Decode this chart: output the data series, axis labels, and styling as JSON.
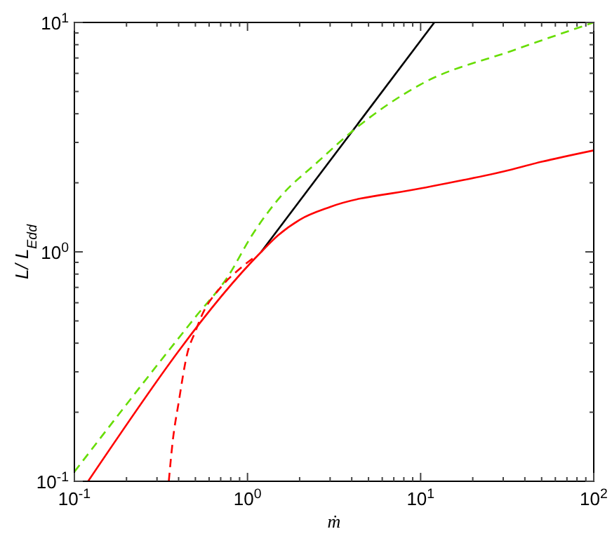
{
  "chart_data": {
    "type": "line",
    "xlabel": "ṁ",
    "ylabel": "L/ L$_{Edd}$",
    "log": "xy",
    "grid": false,
    "xlim": [
      0.1,
      100
    ],
    "ylim": [
      0.1,
      10
    ],
    "xticks": [
      {
        "value": 0.1,
        "label": "10$^{-1}$"
      },
      {
        "value": 0.2,
        "label": null
      },
      {
        "value": 0.3,
        "label": null
      },
      {
        "value": 0.4,
        "label": null
      },
      {
        "value": 0.5,
        "label": null
      },
      {
        "value": 0.6,
        "label": null
      },
      {
        "value": 0.7,
        "label": null
      },
      {
        "value": 0.8,
        "label": null
      },
      {
        "value": 0.9,
        "label": null
      },
      {
        "value": 1,
        "label": "10$^{0}$"
      },
      {
        "value": 2,
        "label": null
      },
      {
        "value": 3,
        "label": null
      },
      {
        "value": 4,
        "label": null
      },
      {
        "value": 5,
        "label": null
      },
      {
        "value": 6,
        "label": null
      },
      {
        "value": 7,
        "label": null
      },
      {
        "value": 8,
        "label": null
      },
      {
        "value": 9,
        "label": null
      },
      {
        "value": 10,
        "label": "10$^{1}$"
      },
      {
        "value": 20,
        "label": null
      },
      {
        "value": 30,
        "label": null
      },
      {
        "value": 40,
        "label": null
      },
      {
        "value": 50,
        "label": null
      },
      {
        "value": 60,
        "label": null
      },
      {
        "value": 70,
        "label": null
      },
      {
        "value": 80,
        "label": null
      },
      {
        "value": 90,
        "label": null
      },
      {
        "value": 100,
        "label": "10$^{2}$"
      }
    ],
    "yticks": [
      {
        "value": 0.1,
        "label": "10$^{-1}$"
      },
      {
        "value": 0.2,
        "label": null
      },
      {
        "value": 0.3,
        "label": null
      },
      {
        "value": 0.4,
        "label": null
      },
      {
        "value": 0.5,
        "label": null
      },
      {
        "value": 0.6,
        "label": null
      },
      {
        "value": 0.7,
        "label": null
      },
      {
        "value": 0.8,
        "label": null
      },
      {
        "value": 0.9,
        "label": null
      },
      {
        "value": 1,
        "label": "10$^{0}$"
      },
      {
        "value": 2,
        "label": null
      },
      {
        "value": 3,
        "label": null
      },
      {
        "value": 4,
        "label": null
      },
      {
        "value": 5,
        "label": null
      },
      {
        "value": 6,
        "label": null
      },
      {
        "value": 7,
        "label": null
      },
      {
        "value": 8,
        "label": null
      },
      {
        "value": 9,
        "label": null
      },
      {
        "value": 10,
        "label": "10$^{1}$"
      }
    ],
    "series": [
      {
        "color": "#000000",
        "line_style": "solid",
        "x": [
          1.2,
          12
        ],
        "values": [
          1.0,
          10
        ]
      },
      {
        "color": "#66dd00",
        "line_style": "dashed",
        "x": [
          0.1,
          0.3,
          0.5,
          0.77,
          1.06,
          1.54,
          2.55,
          4.15,
          10,
          35,
          100
        ],
        "values": [
          0.11,
          0.32,
          0.52,
          0.78,
          1.18,
          1.73,
          2.47,
          3.42,
          5.37,
          7.6,
          10
        ]
      },
      {
        "color": "#ff0000",
        "line_style": "dashed",
        "x": [
          0.351,
          0.37,
          0.4,
          0.447,
          0.5,
          0.55,
          0.7,
          0.93,
          1.1
        ],
        "values": [
          0.1,
          0.15,
          0.22,
          0.356,
          0.45,
          0.537,
          0.7,
          0.86,
          0.95
        ]
      },
      {
        "color": "#ff0000",
        "line_style": "solid",
        "x": [
          0.12,
          1.2,
          1.5,
          2,
          3,
          10,
          30,
          50,
          100
        ],
        "values": [
          0.1,
          1.0,
          1.18,
          1.38,
          1.57,
          1.89,
          2.24,
          2.47,
          2.77
        ]
      }
    ]
  }
}
